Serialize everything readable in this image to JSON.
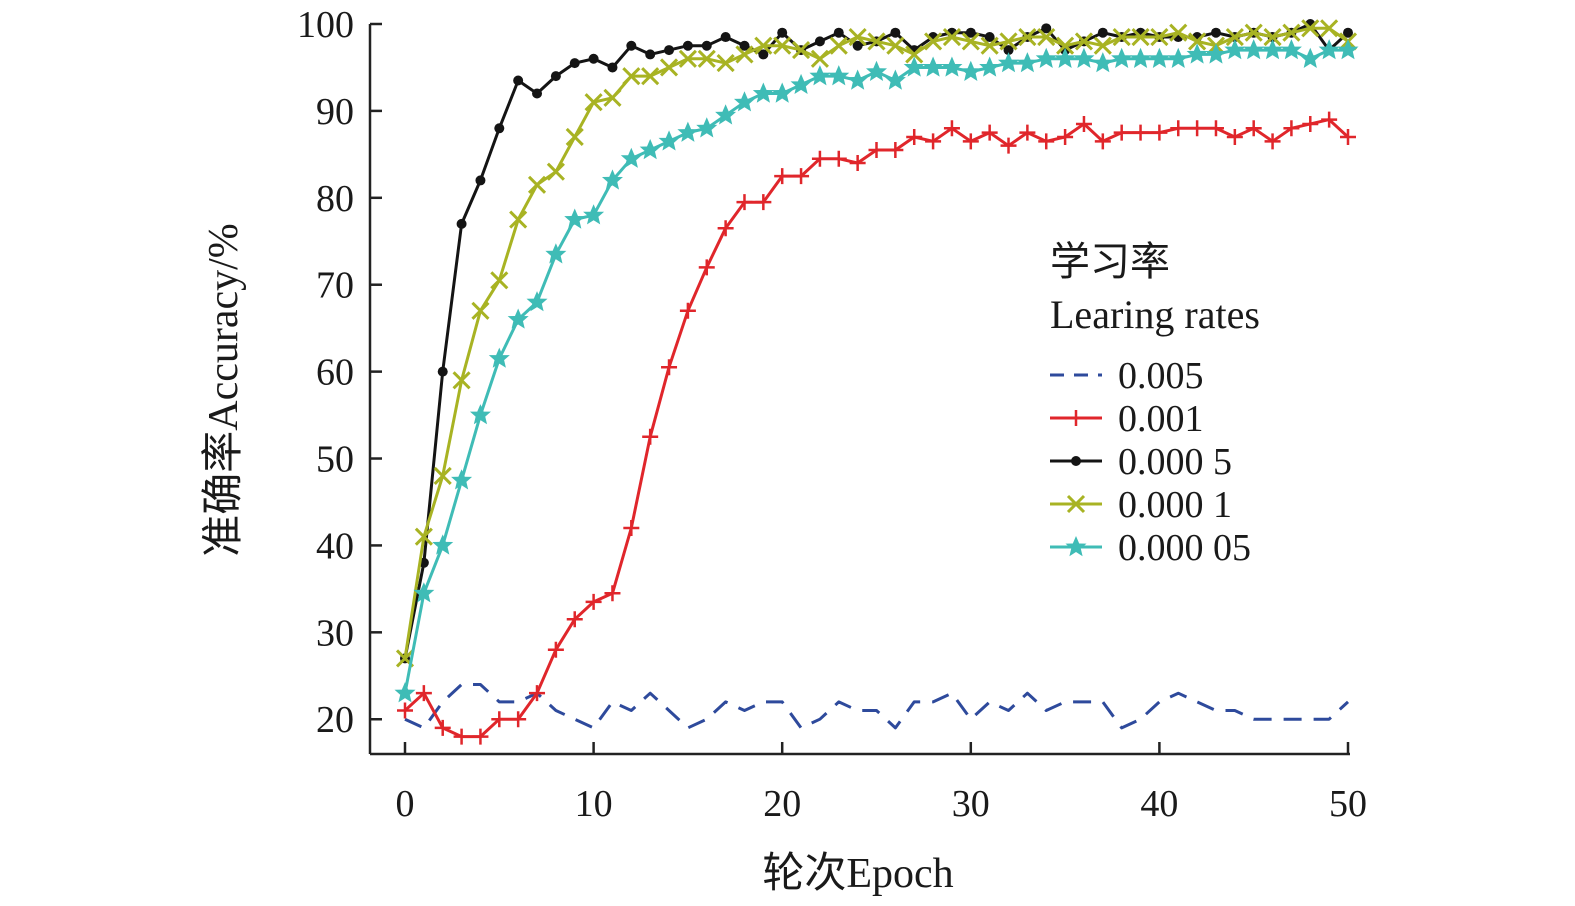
{
  "chart_data": {
    "type": "line",
    "title": "",
    "xlabel": "轮次Epoch",
    "ylabel": "准确率Accuracy/%",
    "xlim": [
      0,
      50
    ],
    "ylim": [
      16,
      100
    ],
    "xticks": [
      0,
      10,
      20,
      30,
      40,
      50
    ],
    "yticks": [
      20,
      30,
      40,
      50,
      60,
      70,
      80,
      90,
      100
    ],
    "grid": false,
    "legend": {
      "title_line1": "学习率",
      "title_line2": "Learing rates",
      "placement": "right-middle"
    },
    "series": [
      {
        "name": "0.005",
        "color": "#2e4a9c",
        "style": "dashed",
        "marker": "none",
        "x": [
          0,
          1,
          2,
          3,
          4,
          5,
          6,
          7,
          8,
          9,
          10,
          11,
          12,
          13,
          14,
          15,
          16,
          17,
          18,
          19,
          20,
          21,
          22,
          23,
          24,
          25,
          26,
          27,
          28,
          29,
          30,
          31,
          32,
          33,
          34,
          35,
          36,
          37,
          38,
          39,
          40,
          41,
          42,
          43,
          44,
          45,
          46,
          47,
          48,
          49,
          50
        ],
        "y": [
          20,
          19,
          22,
          24,
          24,
          22,
          22,
          23,
          21,
          20,
          19,
          22,
          21,
          23,
          21,
          19,
          20,
          22,
          21,
          22,
          22,
          19,
          20,
          22,
          21,
          21,
          19,
          22,
          22,
          23,
          20,
          22,
          21,
          23,
          21,
          22,
          22,
          22,
          19,
          20,
          22,
          23,
          22,
          21,
          21,
          20,
          20,
          20,
          20,
          20,
          22
        ]
      },
      {
        "name": "0.001",
        "color": "#e0262b",
        "style": "solid",
        "marker": "plus",
        "x": [
          0,
          1,
          2,
          3,
          4,
          5,
          6,
          7,
          8,
          9,
          10,
          11,
          12,
          13,
          14,
          15,
          16,
          17,
          18,
          19,
          20,
          21,
          22,
          23,
          24,
          25,
          26,
          27,
          28,
          29,
          30,
          31,
          32,
          33,
          34,
          35,
          36,
          37,
          38,
          39,
          40,
          41,
          42,
          43,
          44,
          45,
          46,
          47,
          48,
          49,
          50
        ],
        "y": [
          21,
          23,
          19,
          18,
          18,
          20,
          20,
          23,
          28,
          31.5,
          33.5,
          34.5,
          42,
          52.5,
          60.5,
          67,
          72,
          76.5,
          79.5,
          79.5,
          82.5,
          82.5,
          84.5,
          84.5,
          84,
          85.5,
          85.5,
          87,
          86.5,
          88,
          86.5,
          87.5,
          86,
          87.5,
          86.5,
          87,
          88.5,
          86.5,
          87.5,
          87.5,
          87.5,
          88,
          88,
          88,
          87,
          88,
          86.5,
          88,
          88.5,
          89,
          87
        ]
      },
      {
        "name": "0.000 5",
        "color": "#141414",
        "style": "solid",
        "marker": "dot",
        "x": [
          0,
          1,
          2,
          3,
          4,
          5,
          6,
          7,
          8,
          9,
          10,
          11,
          12,
          13,
          14,
          15,
          16,
          17,
          18,
          19,
          20,
          21,
          22,
          23,
          24,
          25,
          26,
          27,
          28,
          29,
          30,
          31,
          32,
          33,
          34,
          35,
          36,
          37,
          38,
          39,
          40,
          41,
          42,
          43,
          44,
          45,
          46,
          47,
          48,
          49,
          50
        ],
        "y": [
          27,
          38,
          60,
          77,
          82,
          88,
          93.5,
          92,
          94,
          95.5,
          96,
          95,
          97.5,
          96.5,
          97,
          97.5,
          97.5,
          98.5,
          97.5,
          96.5,
          99,
          97,
          98,
          99,
          97.5,
          98,
          99,
          97,
          98.5,
          99,
          99,
          98.5,
          97,
          98.5,
          99.5,
          97,
          98,
          99,
          98.5,
          99,
          98.5,
          98.5,
          98.5,
          99,
          98.5,
          99,
          98.5,
          99,
          100,
          97,
          99
        ]
      },
      {
        "name": "0.000 1",
        "color": "#a8b323",
        "style": "solid",
        "marker": "x",
        "x": [
          0,
          1,
          2,
          3,
          4,
          5,
          6,
          7,
          8,
          9,
          10,
          11,
          12,
          13,
          14,
          15,
          16,
          17,
          18,
          19,
          20,
          21,
          22,
          23,
          24,
          25,
          26,
          27,
          28,
          29,
          30,
          31,
          32,
          33,
          34,
          35,
          36,
          37,
          38,
          39,
          40,
          41,
          42,
          43,
          44,
          45,
          46,
          47,
          48,
          49,
          50
        ],
        "y": [
          27,
          41,
          48,
          59,
          67,
          70.5,
          77.5,
          81.5,
          83,
          87,
          91,
          91.5,
          94,
          94,
          95,
          96,
          96,
          95.5,
          96.5,
          97.5,
          97.5,
          97,
          96,
          97.5,
          98.5,
          98,
          97.5,
          96.5,
          98,
          98.5,
          98,
          97.5,
          98,
          98.5,
          98.5,
          97.5,
          98,
          97.5,
          98.5,
          98.5,
          98.5,
          99,
          98,
          97.5,
          98.5,
          99,
          98.5,
          99,
          99.5,
          99.5,
          98
        ]
      },
      {
        "name": "0.000 05",
        "color": "#3fbcb6",
        "style": "solid",
        "marker": "star",
        "x": [
          0,
          1,
          2,
          3,
          4,
          5,
          6,
          7,
          8,
          9,
          10,
          11,
          12,
          13,
          14,
          15,
          16,
          17,
          18,
          19,
          20,
          21,
          22,
          23,
          24,
          25,
          26,
          27,
          28,
          29,
          30,
          31,
          32,
          33,
          34,
          35,
          36,
          37,
          38,
          39,
          40,
          41,
          42,
          43,
          44,
          45,
          46,
          47,
          48,
          49,
          50
        ],
        "y": [
          23,
          34.5,
          40,
          47.5,
          55,
          61.5,
          66,
          68,
          73.5,
          77.5,
          78,
          82,
          84.5,
          85.5,
          86.5,
          87.5,
          88,
          89.5,
          91,
          92,
          92,
          93,
          94,
          94,
          93.5,
          94.5,
          93.5,
          95,
          95,
          95,
          94.5,
          95,
          95.5,
          95.5,
          96,
          96,
          96,
          95.5,
          96,
          96,
          96,
          96,
          96.5,
          96.5,
          97,
          97,
          97,
          97,
          96,
          97,
          97
        ]
      }
    ]
  }
}
